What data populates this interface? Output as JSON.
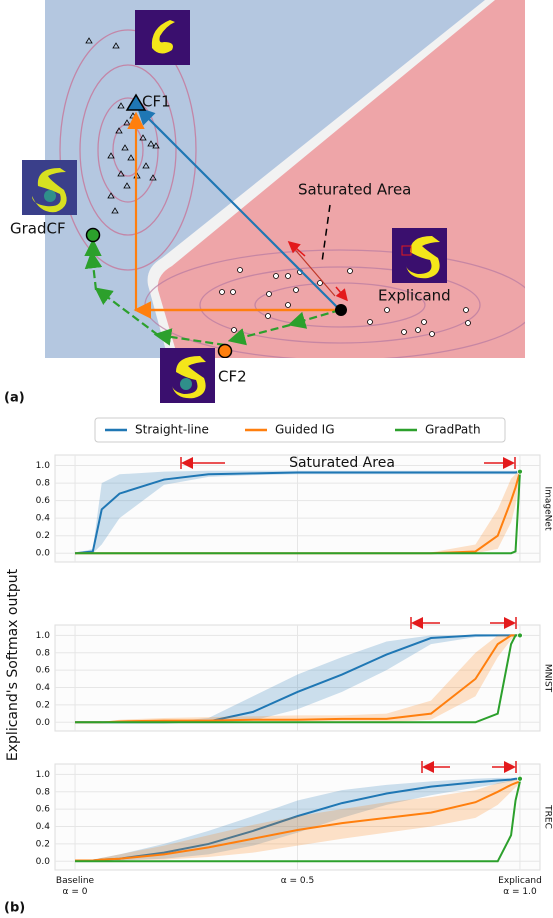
{
  "panel_labels": [
    "(a)",
    "(b)"
  ],
  "panel_a": {
    "cf1": "CF1",
    "saturated": "Saturated Area",
    "gradcf": "GradCF",
    "explicand": "Explicand",
    "cf2": "CF2"
  },
  "y_label": "Explicand's Softmax output",
  "chart_data": [
    {
      "type": "line",
      "facet_label": "ImageNet",
      "annotation": "Saturated Area",
      "x": [
        0,
        0.04,
        0.06,
        0.1,
        0.2,
        0.3,
        0.4,
        0.5,
        0.6,
        0.7,
        0.8,
        0.9,
        0.95,
        0.98,
        0.99,
        1.0
      ],
      "xlim": [
        -0.045,
        1.045
      ],
      "xticks": [
        0,
        0.5,
        1
      ],
      "ylim": [
        -0.1,
        1.12
      ],
      "yticks": [
        {
          "value": 0,
          "label": "0.0"
        },
        {
          "value": 0.2,
          "label": "0.2"
        },
        {
          "value": 0.4,
          "label": "0.4"
        },
        {
          "value": 0.6,
          "label": "0.6"
        },
        {
          "value": 0.8,
          "label": "0.8"
        },
        {
          "value": 1,
          "label": "1.0"
        }
      ],
      "grid": true,
      "series": [
        {
          "name": "Straight-line",
          "color": "#1f77b4",
          "values": [
            0,
            0.02,
            0.5,
            0.68,
            0.84,
            0.9,
            0.91,
            0.92,
            0.92,
            0.92,
            0.92,
            0.92,
            0.92,
            0.92,
            0.92,
            0.93
          ],
          "lower": [
            0,
            0,
            0.1,
            0.4,
            0.78,
            0.87,
            0.89,
            0.9,
            0.9,
            0.9,
            0.9,
            0.9,
            0.9,
            0.9,
            0.9,
            0.91
          ],
          "upper": [
            0,
            0.05,
            0.8,
            0.9,
            0.93,
            0.94,
            0.94,
            0.94,
            0.94,
            0.94,
            0.94,
            0.94,
            0.94,
            0.94,
            0.94,
            0.95
          ]
        },
        {
          "name": "Guided IG",
          "color": "#ff7f0e",
          "values": [
            0,
            0,
            0,
            0,
            0,
            0,
            0,
            0,
            0,
            0,
            0,
            0.02,
            0.2,
            0.6,
            0.75,
            0.93
          ],
          "lower": [
            0,
            0,
            0,
            0,
            0,
            0,
            0,
            0,
            0,
            0,
            0,
            0,
            0.05,
            0.35,
            0.55,
            0.9
          ],
          "upper": [
            0,
            0,
            0,
            0,
            0,
            0,
            0,
            0,
            0,
            0,
            0.01,
            0.1,
            0.5,
            0.85,
            0.9,
            0.95
          ]
        },
        {
          "name": "GradPath",
          "color": "#2ca02c",
          "values": [
            0,
            0,
            0,
            0,
            0,
            0,
            0,
            0,
            0,
            0,
            0,
            0,
            0,
            0,
            0.02,
            0.93
          ]
        }
      ]
    },
    {
      "type": "line",
      "facet_label": "MNIST",
      "x": [
        0,
        0.04,
        0.06,
        0.1,
        0.2,
        0.3,
        0.4,
        0.5,
        0.6,
        0.7,
        0.8,
        0.9,
        0.95,
        0.98,
        0.99,
        1.0
      ],
      "xlim": [
        -0.045,
        1.045
      ],
      "xticks": [
        0,
        0.5,
        1
      ],
      "ylim": [
        -0.1,
        1.12
      ],
      "yticks": [
        {
          "value": 0,
          "label": "0.0"
        },
        {
          "value": 0.2,
          "label": "0.2"
        },
        {
          "value": 0.4,
          "label": "0.4"
        },
        {
          "value": 0.6,
          "label": "0.6"
        },
        {
          "value": 0.8,
          "label": "0.8"
        },
        {
          "value": 1,
          "label": "1.0"
        }
      ],
      "grid": true,
      "series": [
        {
          "name": "Straight-line",
          "color": "#1f77b4",
          "values": [
            0,
            0,
            0,
            0,
            0,
            0.01,
            0.12,
            0.35,
            0.55,
            0.78,
            0.97,
            1,
            1,
            1,
            1,
            1
          ],
          "lower": [
            0,
            0,
            0,
            0,
            0,
            0,
            0.02,
            0.15,
            0.35,
            0.6,
            0.9,
            0.98,
            0.99,
            1,
            1,
            1
          ],
          "upper": [
            0,
            0,
            0,
            0,
            0,
            0.05,
            0.3,
            0.55,
            0.75,
            0.93,
            1,
            1,
            1,
            1,
            1,
            1
          ]
        },
        {
          "name": "Guided IG",
          "color": "#ff7f0e",
          "values": [
            0,
            0,
            0,
            0.01,
            0.02,
            0.02,
            0.03,
            0.03,
            0.04,
            0.04,
            0.1,
            0.5,
            0.9,
            1,
            1,
            1
          ],
          "lower": [
            0,
            0,
            0,
            0,
            0,
            0,
            0,
            0,
            0,
            0,
            0.03,
            0.3,
            0.75,
            0.95,
            1,
            1
          ],
          "upper": [
            0,
            0,
            0,
            0.03,
            0.05,
            0.06,
            0.07,
            0.08,
            0.08,
            0.1,
            0.25,
            0.8,
            1,
            1,
            1,
            1
          ]
        },
        {
          "name": "GradPath",
          "color": "#2ca02c",
          "values": [
            0,
            0,
            0,
            0,
            0,
            0,
            0,
            0,
            0,
            0,
            0,
            0,
            0.1,
            0.9,
            1,
            1
          ]
        }
      ]
    },
    {
      "type": "line",
      "facet_label": "TREC",
      "x": [
        0,
        0.04,
        0.06,
        0.1,
        0.2,
        0.3,
        0.4,
        0.5,
        0.6,
        0.7,
        0.8,
        0.9,
        0.95,
        0.98,
        0.99,
        1.0
      ],
      "xlim": [
        -0.045,
        1.045
      ],
      "xticks": [
        {
          "value": 0,
          "label": "Baseline\nα = 0"
        },
        {
          "value": 0.5,
          "label": "α = 0.5"
        },
        {
          "value": 1,
          "label": "Explicand\nα = 1.0"
        }
      ],
      "ylim": [
        -0.1,
        1.12
      ],
      "yticks": [
        {
          "value": 0,
          "label": "0.0"
        },
        {
          "value": 0.2,
          "label": "0.2"
        },
        {
          "value": 0.4,
          "label": "0.4"
        },
        {
          "value": 0.6,
          "label": "0.6"
        },
        {
          "value": 0.8,
          "label": "0.8"
        },
        {
          "value": 1,
          "label": "1.0"
        }
      ],
      "grid": true,
      "series": [
        {
          "name": "Straight-line",
          "color": "#1f77b4",
          "values": [
            0.01,
            0.01,
            0.02,
            0.03,
            0.1,
            0.2,
            0.35,
            0.52,
            0.67,
            0.78,
            0.86,
            0.91,
            0.93,
            0.94,
            0.95,
            0.95
          ],
          "lower": [
            0.01,
            0.01,
            0.01,
            0.01,
            0.03,
            0.08,
            0.18,
            0.33,
            0.5,
            0.65,
            0.76,
            0.85,
            0.89,
            0.92,
            0.93,
            0.94
          ],
          "upper": [
            0.01,
            0.02,
            0.04,
            0.08,
            0.2,
            0.35,
            0.52,
            0.7,
            0.82,
            0.88,
            0.92,
            0.95,
            0.96,
            0.96,
            0.96,
            0.96
          ]
        },
        {
          "name": "Guided IG",
          "color": "#ff7f0e",
          "values": [
            0.01,
            0.01,
            0.02,
            0.03,
            0.08,
            0.16,
            0.26,
            0.36,
            0.44,
            0.5,
            0.56,
            0.68,
            0.8,
            0.88,
            0.9,
            0.92
          ],
          "lower": [
            0.01,
            0.01,
            0.01,
            0.01,
            0.02,
            0.05,
            0.1,
            0.18,
            0.26,
            0.33,
            0.4,
            0.5,
            0.65,
            0.8,
            0.85,
            0.9
          ],
          "upper": [
            0.01,
            0.02,
            0.04,
            0.08,
            0.18,
            0.3,
            0.42,
            0.52,
            0.6,
            0.68,
            0.74,
            0.82,
            0.9,
            0.93,
            0.94,
            0.95
          ]
        },
        {
          "name": "GradPath",
          "color": "#2ca02c",
          "values": [
            0,
            0,
            0,
            0,
            0,
            0,
            0,
            0,
            0,
            0,
            0,
            0,
            0,
            0.3,
            0.7,
            0.92
          ]
        }
      ]
    }
  ]
}
